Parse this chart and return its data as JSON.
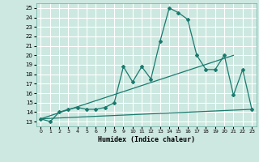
{
  "title": "",
  "xlabel": "Humidex (Indice chaleur)",
  "ylabel": "",
  "bg_color": "#cce8e0",
  "grid_color": "#b0d0c8",
  "line_color": "#1a7a6e",
  "xlim": [
    -0.5,
    23.5
  ],
  "ylim": [
    12.5,
    25.5
  ],
  "xticks": [
    0,
    1,
    2,
    3,
    4,
    5,
    6,
    7,
    8,
    9,
    10,
    11,
    12,
    13,
    14,
    15,
    16,
    17,
    18,
    19,
    20,
    21,
    22,
    23
  ],
  "yticks": [
    13,
    14,
    15,
    16,
    17,
    18,
    19,
    20,
    21,
    22,
    23,
    24,
    25
  ],
  "series1_x": [
    0,
    1,
    2,
    3,
    4,
    5,
    6,
    7,
    8,
    9,
    10,
    11,
    12,
    13,
    14,
    15,
    16,
    17,
    18,
    19,
    20,
    21,
    22,
    23
  ],
  "series1_y": [
    13.3,
    13.0,
    14.0,
    14.3,
    14.5,
    14.3,
    14.3,
    14.5,
    15.0,
    18.8,
    17.2,
    18.8,
    17.5,
    21.5,
    25.0,
    24.5,
    23.8,
    20.0,
    18.5,
    18.5,
    20.0,
    15.8,
    18.5,
    14.3
  ],
  "series2_x": [
    0,
    23
  ],
  "series2_y": [
    13.3,
    14.3
  ],
  "series3_x": [
    0,
    21
  ],
  "series3_y": [
    13.3,
    20.0
  ]
}
